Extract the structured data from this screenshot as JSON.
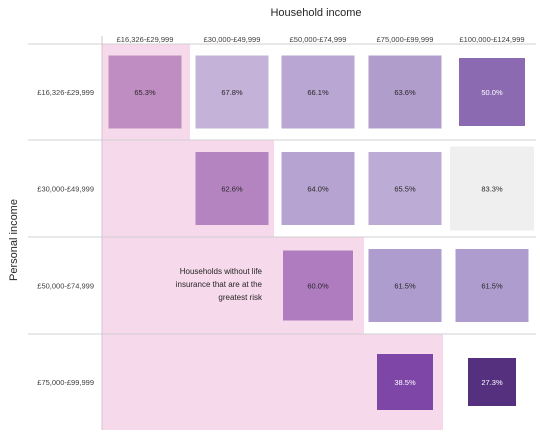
{
  "chart_data": {
    "type": "heatmap",
    "title": "",
    "xlabel": "Household income",
    "ylabel": "Personal income",
    "x_categories": [
      "£16,326-£29,999",
      "£30,000-£49,999",
      "£50,000-£74,999",
      "£75,000-£99,999",
      "£100,000-£124,999"
    ],
    "y_categories": [
      "£16,326-£29,999",
      "£30,000-£49,999",
      "£50,000-£74,999",
      "£75,000-£99,999"
    ],
    "cells": [
      {
        "row": 0,
        "col": 0,
        "value": 65.3,
        "label": "65.3%",
        "color": "#c08dc2"
      },
      {
        "row": 0,
        "col": 1,
        "value": 67.8,
        "label": "67.8%",
        "color": "#c4b2d9"
      },
      {
        "row": 0,
        "col": 2,
        "value": 66.1,
        "label": "66.1%",
        "color": "#b9a6d2"
      },
      {
        "row": 0,
        "col": 3,
        "value": 63.6,
        "label": "63.6%",
        "color": "#b19dcc"
      },
      {
        "row": 0,
        "col": 4,
        "value": 50.0,
        "label": "50.0%",
        "color": "#8b6ab2"
      },
      {
        "row": 1,
        "col": 1,
        "value": 62.6,
        "label": "62.6%",
        "color": "#b484c0"
      },
      {
        "row": 1,
        "col": 2,
        "value": 64.0,
        "label": "64.0%",
        "color": "#b7a3d1"
      },
      {
        "row": 1,
        "col": 3,
        "value": 65.5,
        "label": "65.5%",
        "color": "#bcabd5"
      },
      {
        "row": 1,
        "col": 4,
        "value": 83.3,
        "label": "83.3%",
        "color": "#efefef"
      },
      {
        "row": 2,
        "col": 2,
        "value": 60.0,
        "label": "60.0%",
        "color": "#b07cc0"
      },
      {
        "row": 2,
        "col": 3,
        "value": 61.5,
        "label": "61.5%",
        "color": "#ad9ccd"
      },
      {
        "row": 2,
        "col": 4,
        "value": 61.5,
        "label": "61.5%",
        "color": "#ad9ccd"
      },
      {
        "row": 3,
        "col": 3,
        "value": 38.5,
        "label": "38.5%",
        "color": "#7e46a6"
      },
      {
        "row": 3,
        "col": 4,
        "value": 27.3,
        "label": "27.3%",
        "color": "#55307f"
      }
    ],
    "highlight": {
      "color": "#f6d9ea",
      "note": "Households without life insurance that are at the greatest risk"
    },
    "grid": false,
    "legend": "none"
  }
}
